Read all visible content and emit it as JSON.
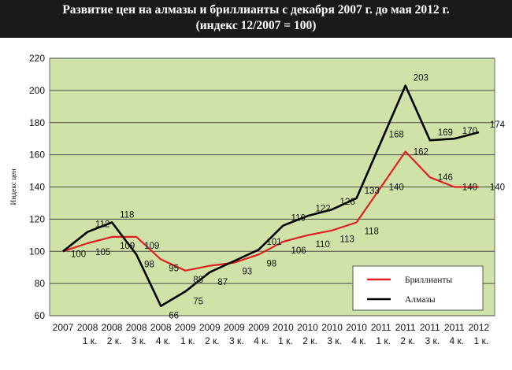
{
  "title": {
    "line1": "Развитие цен на алмазы и бриллианты с декабря 2007 г. до мая 2012 г.",
    "line2": "(индекс 12/2007 = 100)"
  },
  "colors": {
    "plot_bg": "#cfe3a8",
    "diamonds_rough": "#000000",
    "diamonds_cut": "#e02020",
    "grid": "#4a4a4a"
  },
  "chart_data": {
    "type": "line",
    "ylabel": "Индекс цен",
    "ylim": [
      60,
      220
    ],
    "yticks": [
      60,
      80,
      100,
      120,
      140,
      160,
      180,
      200,
      220
    ],
    "grid": true,
    "legend_position": "bottom-right",
    "categories": [
      [
        "2007",
        ""
      ],
      [
        "2008",
        "1 к."
      ],
      [
        "2008",
        "2 к."
      ],
      [
        "2008",
        "3 к."
      ],
      [
        "2008",
        "4 к."
      ],
      [
        "2009",
        "1 к."
      ],
      [
        "2009",
        "2 к."
      ],
      [
        "2009",
        "3 к."
      ],
      [
        "2009",
        "4 к."
      ],
      [
        "2010",
        "1 к."
      ],
      [
        "2010",
        "2 к."
      ],
      [
        "2010",
        "3 к."
      ],
      [
        "2010",
        "4 к."
      ],
      [
        "2011",
        "1 к."
      ],
      [
        "2011",
        "2 к."
      ],
      [
        "2011",
        "3 к."
      ],
      [
        "2011",
        "4 к."
      ],
      [
        "2012",
        "1 к."
      ]
    ],
    "series": [
      {
        "name": "Бриллианты",
        "color": "#e02020",
        "values": [
          100,
          105,
          109,
          109,
          95,
          88,
          91,
          93,
          98,
          106,
          110,
          113,
          118,
          140,
          162,
          146,
          140,
          140
        ],
        "labels": [
          "100",
          "105",
          "109",
          "109",
          "95",
          "88",
          "",
          "93",
          "98",
          "106",
          "110",
          "113",
          "118",
          "140",
          "162",
          "146",
          "140",
          "140"
        ]
      },
      {
        "name": "Алмазы",
        "color": "#000000",
        "values": [
          100,
          112,
          118,
          98,
          66,
          75,
          87,
          94,
          101,
          116,
          122,
          126,
          133,
          168,
          203,
          169,
          170,
          174
        ],
        "labels": [
          "",
          "112",
          "118",
          "98",
          "66",
          "75",
          "87",
          "",
          "101",
          "116",
          "122",
          "126",
          "133",
          "168",
          "203",
          "169",
          "170",
          "174"
        ]
      }
    ]
  }
}
